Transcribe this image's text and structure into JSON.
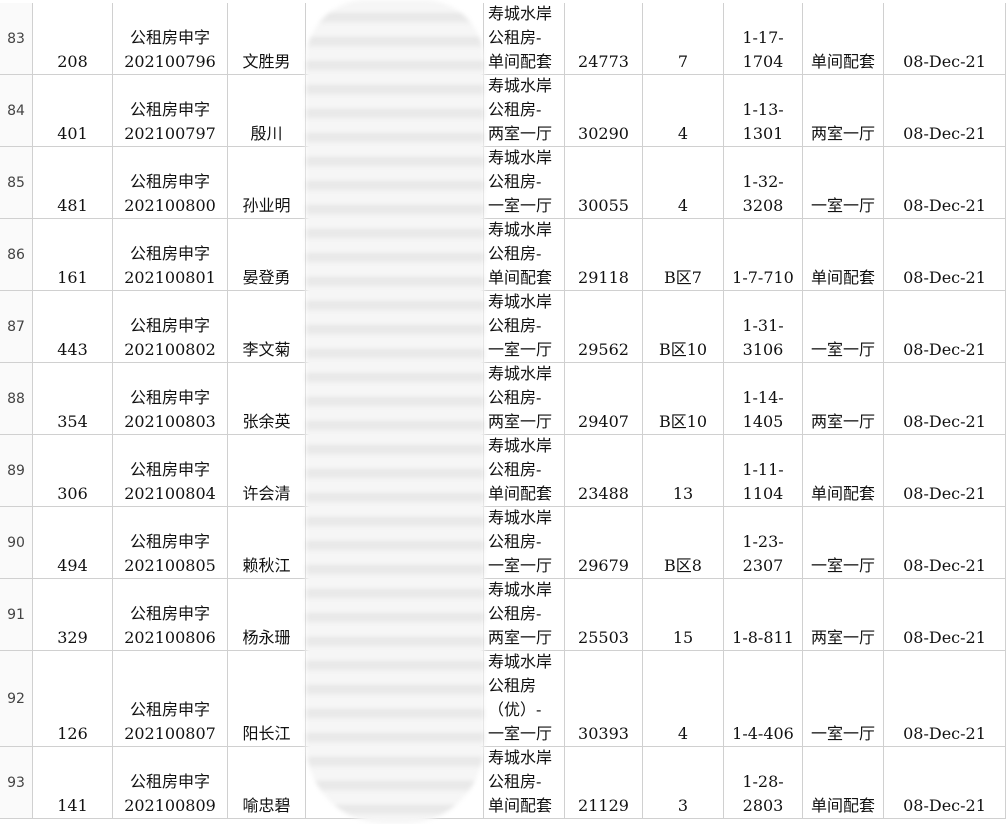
{
  "table": {
    "rows": [
      {
        "row": 83,
        "no": 208,
        "code": [
          "公租房申字",
          "202100796"
        ],
        "name": "文胜男",
        "project": [
          "寿城水岸",
          "公租房-",
          "单间配套"
        ],
        "area_id": 24773,
        "building": "7",
        "room": [
          "1-17-",
          "1704"
        ],
        "type": "单间配套",
        "date": "08-Dec-21"
      },
      {
        "row": 84,
        "no": 401,
        "code": [
          "公租房申字",
          "202100797"
        ],
        "name": "殷川",
        "project": [
          "寿城水岸",
          "公租房-",
          "两室一厅"
        ],
        "area_id": 30290,
        "building": "4",
        "room": [
          "1-13-",
          "1301"
        ],
        "type": "两室一厅",
        "date": "08-Dec-21"
      },
      {
        "row": 85,
        "no": 481,
        "code": [
          "公租房申字",
          "202100800"
        ],
        "name": "孙业明",
        "project": [
          "寿城水岸",
          "公租房-",
          "一室一厅"
        ],
        "area_id": 30055,
        "building": "4",
        "room": [
          "1-32-",
          "3208"
        ],
        "type": "一室一厅",
        "date": "08-Dec-21"
      },
      {
        "row": 86,
        "no": 161,
        "code": [
          "公租房申字",
          "202100801"
        ],
        "name": "晏登勇",
        "project": [
          "寿城水岸",
          "公租房-",
          "单间配套"
        ],
        "area_id": 29118,
        "building": "B区7",
        "room": [
          "1-7-710"
        ],
        "type": "单间配套",
        "date": "08-Dec-21"
      },
      {
        "row": 87,
        "no": 443,
        "code": [
          "公租房申字",
          "202100802"
        ],
        "name": "李文菊",
        "project": [
          "寿城水岸",
          "公租房-",
          "一室一厅"
        ],
        "area_id": 29562,
        "building": "B区10",
        "room": [
          "1-31-",
          "3106"
        ],
        "type": "一室一厅",
        "date": "08-Dec-21"
      },
      {
        "row": 88,
        "no": 354,
        "code": [
          "公租房申字",
          "202100803"
        ],
        "name": "张余英",
        "project": [
          "寿城水岸",
          "公租房-",
          "两室一厅"
        ],
        "area_id": 29407,
        "building": "B区10",
        "room": [
          "1-14-",
          "1405"
        ],
        "type": "两室一厅",
        "date": "08-Dec-21"
      },
      {
        "row": 89,
        "no": 306,
        "code": [
          "公租房申字",
          "202100804"
        ],
        "name": "许会清",
        "project": [
          "寿城水岸",
          "公租房-",
          "单间配套"
        ],
        "area_id": 23488,
        "building": "13",
        "room": [
          "1-11-",
          "1104"
        ],
        "type": "单间配套",
        "date": "08-Dec-21"
      },
      {
        "row": 90,
        "no": 494,
        "code": [
          "公租房申字",
          "202100805"
        ],
        "name": "赖秋江",
        "project": [
          "寿城水岸",
          "公租房-",
          "一室一厅"
        ],
        "area_id": 29679,
        "building": "B区8",
        "room": [
          "1-23-",
          "2307"
        ],
        "type": "一室一厅",
        "date": "08-Dec-21"
      },
      {
        "row": 91,
        "no": 329,
        "code": [
          "公租房申字",
          "202100806"
        ],
        "name": "杨永珊",
        "project": [
          "寿城水岸",
          "公租房-",
          "两室一厅"
        ],
        "area_id": 25503,
        "building": "15",
        "room": [
          "1-8-811"
        ],
        "type": "两室一厅",
        "date": "08-Dec-21"
      },
      {
        "row": 92,
        "no": 126,
        "code": [
          "公租房申字",
          "202100807"
        ],
        "name": "阳长江",
        "project": [
          "寿城水岸",
          "公租房",
          "（优）-",
          "一室一厅"
        ],
        "area_id": 30393,
        "building": "4",
        "room": [
          "1-4-406"
        ],
        "type": "一室一厅",
        "date": "08-Dec-21"
      },
      {
        "row": 93,
        "no": 141,
        "code": [
          "公租房申字",
          "202100809"
        ],
        "name": "喻忠碧",
        "project": [
          "寿城水岸",
          "公租房-",
          "单间配套"
        ],
        "area_id": 21129,
        "building": "3",
        "room": [
          "1-28-",
          "2803"
        ],
        "type": "单间配套",
        "date": "08-Dec-21"
      }
    ]
  }
}
